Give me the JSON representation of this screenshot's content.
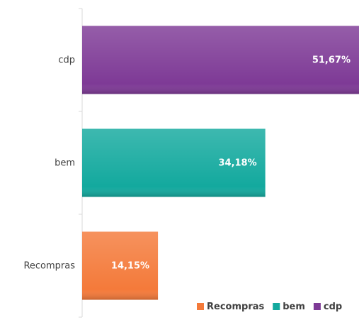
{
  "chart_data": {
    "type": "bar",
    "orientation": "horizontal",
    "categories": [
      "Recompras",
      "bem",
      "cdp"
    ],
    "values": [
      14.15,
      34.18,
      51.67
    ],
    "value_labels": [
      "14,15%",
      "34,18%",
      "51,67%"
    ],
    "colors": [
      "#F47A3A",
      "#13A99E",
      "#7E3A96"
    ],
    "xlim": [
      0,
      51.67
    ],
    "title": "",
    "xlabel": "",
    "ylabel": "",
    "grid": false,
    "legend": {
      "placement": "bottom-right",
      "entries": [
        {
          "label": "Recompras",
          "color": "#F47A3A"
        },
        {
          "label": "bem",
          "color": "#13A99E"
        },
        {
          "label": "cdp",
          "color": "#7E3A96"
        }
      ]
    }
  }
}
